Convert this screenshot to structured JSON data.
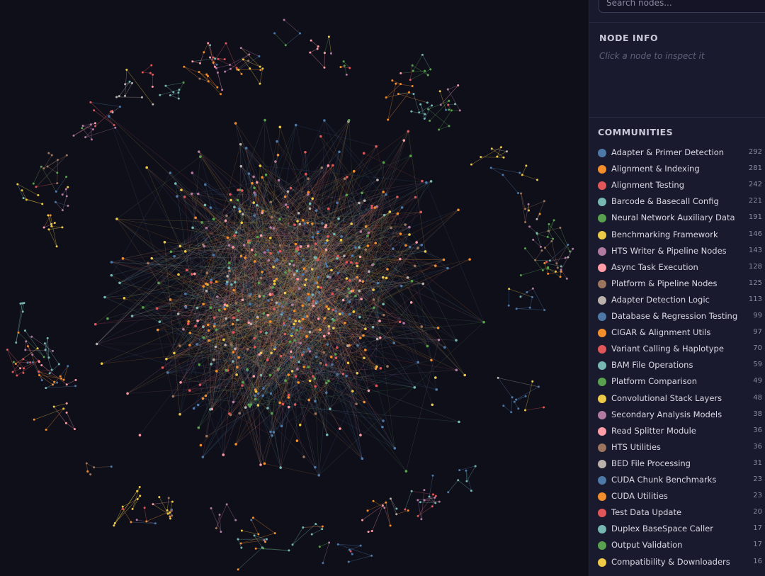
{
  "search": {
    "placeholder": "Search nodes..."
  },
  "node_info": {
    "title": "NODE INFO",
    "hint": "Click a node to inspect it"
  },
  "communities": {
    "title": "COMMUNITIES",
    "items": [
      {
        "name": "Adapter & Primer Detection",
        "count": 292,
        "color": "#4e79a7"
      },
      {
        "name": "Alignment & Indexing",
        "count": 281,
        "color": "#f28e2b"
      },
      {
        "name": "Alignment Testing",
        "count": 242,
        "color": "#e15759"
      },
      {
        "name": "Barcode & Basecall Config",
        "count": 221,
        "color": "#76b7b2"
      },
      {
        "name": "Neural Network Auxiliary Data",
        "count": 191,
        "color": "#59a14f"
      },
      {
        "name": "Benchmarking Framework",
        "count": 146,
        "color": "#edc948"
      },
      {
        "name": "HTS Writer & Pipeline Nodes",
        "count": 143,
        "color": "#b07aa1"
      },
      {
        "name": "Async Task Execution",
        "count": 128,
        "color": "#ff9da7"
      },
      {
        "name": "Platform & Pipeline Nodes",
        "count": 125,
        "color": "#9c755f"
      },
      {
        "name": "Adapter Detection Logic",
        "count": 113,
        "color": "#bab0ac"
      },
      {
        "name": "Database & Regression Testing",
        "count": 99,
        "color": "#4e79a7"
      },
      {
        "name": "CIGAR & Alignment Utils",
        "count": 97,
        "color": "#f28e2b"
      },
      {
        "name": "Variant Calling & Haplotype",
        "count": 70,
        "color": "#e15759"
      },
      {
        "name": "BAM File Operations",
        "count": 59,
        "color": "#76b7b2"
      },
      {
        "name": "Platform Comparison",
        "count": 49,
        "color": "#59a14f"
      },
      {
        "name": "Convolutional Stack Layers",
        "count": 48,
        "color": "#edc948"
      },
      {
        "name": "Secondary Analysis Models",
        "count": 38,
        "color": "#b07aa1"
      },
      {
        "name": "Read Splitter Module",
        "count": 36,
        "color": "#ff9da7"
      },
      {
        "name": "HTS Utilities",
        "count": 36,
        "color": "#9c755f"
      },
      {
        "name": "BED File Processing",
        "count": 31,
        "color": "#bab0ac"
      },
      {
        "name": "CUDA Chunk Benchmarks",
        "count": 23,
        "color": "#4e79a7"
      },
      {
        "name": "CUDA Utilities",
        "count": 23,
        "color": "#f28e2b"
      },
      {
        "name": "Test Data Update",
        "count": 20,
        "color": "#e15759"
      },
      {
        "name": "Duplex BaseSpace Caller",
        "count": 17,
        "color": "#76b7b2"
      },
      {
        "name": "Output Validation",
        "count": 17,
        "color": "#59a14f"
      },
      {
        "name": "Compatibility & Downloaders",
        "count": 16,
        "color": "#edc948"
      }
    ]
  }
}
